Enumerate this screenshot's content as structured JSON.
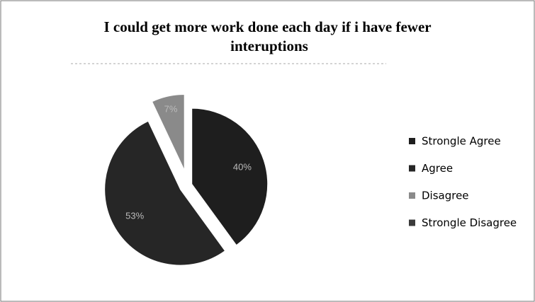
{
  "chart_data": {
    "type": "pie",
    "title": "I could get more work done each day if i have fewer interuptions",
    "categories": [
      "Strongle Agree",
      "Agree",
      "Disagree",
      "Strongle Disagree"
    ],
    "values": [
      40,
      53,
      7,
      0
    ],
    "value_labels": [
      "40%",
      "53%",
      "7%",
      null
    ],
    "colors": [
      "#1e1e1e",
      "#262626",
      "#8a8a8a",
      "#3a3a3a"
    ],
    "legend": "right"
  }
}
